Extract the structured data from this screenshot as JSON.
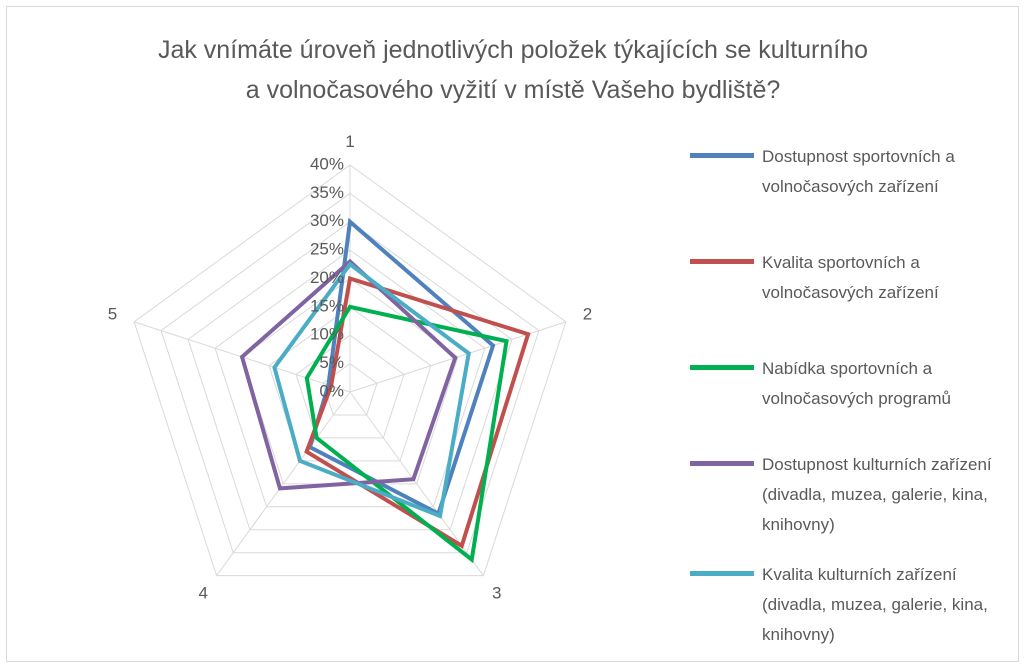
{
  "chart_data": {
    "type": "radar",
    "title": "Jak vnímáte úroveň jednotlivých položek týkajících se kulturního a volnočasového vyžití v místě Vašeho bydliště?",
    "categories": [
      "1",
      "2",
      "3",
      "4",
      "5"
    ],
    "series": [
      {
        "name": "Dostupnost sportovních a volnočasových zařízení",
        "color": "#4f81bd",
        "values": [
          30,
          26.5,
          26.5,
          12,
          4
        ]
      },
      {
        "name": "Kvalita sportovních a volnočasových zařízení",
        "color": "#c0504d",
        "values": [
          20,
          33,
          33.5,
          13,
          3.5
        ]
      },
      {
        "name": "Nabídka sportovních a volnočasových programů",
        "color": "#00b050",
        "values": [
          15,
          29,
          36.5,
          10,
          8
        ]
      },
      {
        "name": "Dostupnost kulturních zařízení (divadla, muzea, galerie, kina, knihovny)",
        "color": "#8064a2",
        "values": [
          23,
          19.5,
          19,
          21,
          20
        ]
      },
      {
        "name": "Kvalita kulturních zařízení (divadla, muzea, galerie, kina, knihovny)",
        "color": "#4bacc6",
        "values": [
          22.5,
          22,
          27,
          15,
          14
        ]
      }
    ],
    "ylim": [
      0,
      40
    ],
    "yticks": [
      {
        "value": 0,
        "label": "0%"
      },
      {
        "value": 5,
        "label": "5%"
      },
      {
        "value": 10,
        "label": "10%"
      },
      {
        "value": 15,
        "label": "15%"
      },
      {
        "value": 20,
        "label": "20%"
      },
      {
        "value": 25,
        "label": "25%"
      },
      {
        "value": 30,
        "label": "30%"
      },
      {
        "value": 35,
        "label": "35%"
      },
      {
        "value": 40,
        "label": "40%"
      }
    ],
    "grid": true
  }
}
